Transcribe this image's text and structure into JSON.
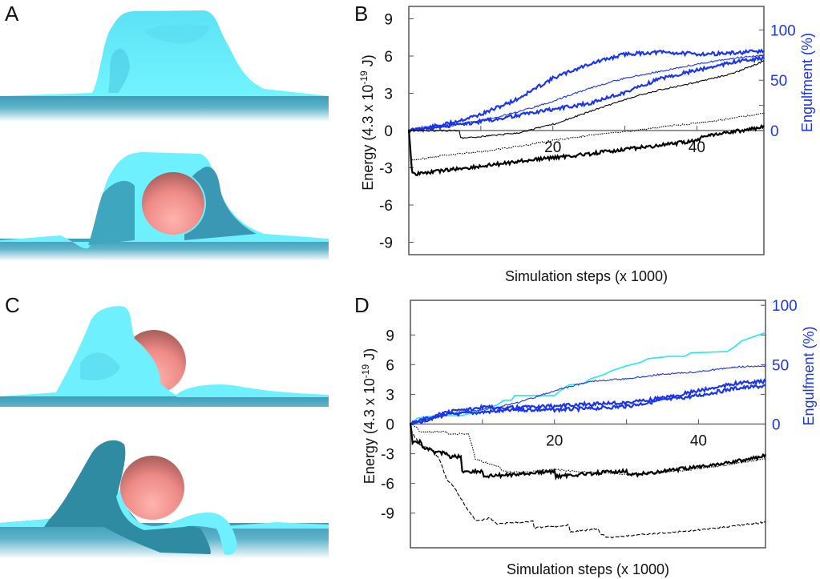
{
  "panels": {
    "A": {
      "label": "A",
      "description": "Cell spreading on flat substrate (top) and cup around spherical particle (bottom)"
    },
    "B": {
      "label": "B"
    },
    "C": {
      "label": "C",
      "description": "Asymmetric cup beside particle (top) and particle engulfed from side (bottom)"
    },
    "D": {
      "label": "D"
    }
  },
  "colors": {
    "membrane_light": "#6FF0FF",
    "membrane_dark": "#2F8BA2",
    "substrate": "#3E9CB8",
    "particle": "#F08F8C",
    "energy": "#000000",
    "engulfment": "#1A35F0",
    "engulfment_highlight": "#22E6F0",
    "axis": "#555555"
  },
  "chart_data": [
    {
      "id": "B",
      "type": "line",
      "xlabel": "Simulation steps (x 1000)",
      "ylabel": "Energy (4.3 x 10",
      "ylabel_sup": "-19",
      "ylabel_tail": " J)",
      "y2label": "Engulfment (%)",
      "xlim": [
        0,
        49.3
      ],
      "ylim": [
        -10,
        10
      ],
      "y2lim": [
        0,
        100
      ],
      "y2_zero_at_y": 0,
      "y2_100_at_y": 8.1,
      "xticks": [
        10,
        20,
        30,
        40
      ],
      "xticklabels": [
        "",
        "20",
        "",
        "40"
      ],
      "yticks": [
        9,
        6,
        3,
        0,
        -3,
        -6,
        -9
      ],
      "yticklabels": [
        "9",
        "6",
        "3",
        "0",
        "-3",
        "-6",
        "-9"
      ],
      "y2ticks": [
        0,
        25,
        50,
        75,
        100
      ],
      "y2ticklabels": [
        "0",
        "",
        "50",
        "",
        "100"
      ],
      "energy_series": [
        {
          "name": "energy-1",
          "style": "thick",
          "x": [
            0,
            0.4,
            0.5,
            1,
            5,
            10,
            15,
            20,
            25,
            30,
            35,
            40,
            41,
            45,
            49.3
          ],
          "y": [
            0,
            -2.9,
            -3.4,
            -3.5,
            -3.2,
            -2.9,
            -2.5,
            -2.2,
            -1.9,
            -1.5,
            -1.2,
            -0.8,
            -0.4,
            -0.1,
            0.3
          ]
        },
        {
          "name": "energy-2",
          "style": "dotted",
          "x": [
            0,
            0.3,
            0.5,
            5,
            10,
            15,
            20,
            25,
            30,
            35,
            40,
            45,
            49.3
          ],
          "y": [
            0,
            -2.2,
            -2.4,
            -2.0,
            -1.7,
            -1.3,
            -0.8,
            -0.4,
            -0.1,
            0.3,
            0.6,
            1.0,
            1.4
          ]
        },
        {
          "name": "energy-3",
          "style": "thin",
          "x": [
            0,
            7,
            7.2,
            10,
            15,
            20,
            25,
            30,
            35,
            40,
            45,
            49.3
          ],
          "y": [
            0,
            0,
            -0.6,
            -0.5,
            -0.2,
            0.5,
            1.5,
            2.5,
            3.3,
            3.9,
            4.6,
            5.6
          ]
        }
      ],
      "engulfment_series": [
        {
          "name": "engulf-1",
          "style": "thick",
          "x": [
            0,
            5,
            10,
            15,
            20,
            25,
            30,
            35,
            40,
            45,
            49.3
          ],
          "y_percent": [
            0,
            6,
            16,
            31,
            52,
            66,
            76,
            78,
            76,
            77,
            79
          ]
        },
        {
          "name": "engulf-2",
          "style": "thin",
          "x": [
            0,
            5,
            10,
            15,
            20,
            25,
            30,
            35,
            40,
            45,
            49.3
          ],
          "y_percent": [
            0,
            4,
            10,
            18,
            29,
            42,
            52,
            59,
            66,
            72,
            75
          ]
        },
        {
          "name": "engulf-3",
          "style": "thick",
          "x": [
            0,
            5,
            10,
            15,
            20,
            25,
            30,
            35,
            40,
            45,
            49.3
          ],
          "y_percent": [
            0,
            4,
            9,
            15,
            21,
            27,
            38,
            52,
            60,
            68,
            72
          ]
        }
      ]
    },
    {
      "id": "D",
      "type": "line",
      "xlabel": "Simulation steps (x 1000)",
      "ylabel": "Energy (4.3 x 10",
      "ylabel_sup": "-19",
      "ylabel_tail": " J)",
      "y2label": "Engulfment (%)",
      "xlim": [
        0,
        49.3
      ],
      "ylim": [
        -12.5,
        12.5
      ],
      "y2lim": [
        0,
        100
      ],
      "y2_zero_at_y": 0,
      "y2_100_at_y": 12,
      "xticks": [
        10,
        20,
        30,
        40
      ],
      "xticklabels": [
        "",
        "20",
        "",
        "40"
      ],
      "yticks": [
        9,
        6,
        3,
        0,
        -3,
        -6,
        -9
      ],
      "yticklabels": [
        "9",
        "6",
        "3",
        "0",
        "-3",
        "-6",
        "-9"
      ],
      "y2ticks": [
        0,
        25,
        50,
        75,
        100
      ],
      "y2ticklabels": [
        "0",
        "",
        "50",
        "",
        "100"
      ],
      "energy_series": [
        {
          "name": "energy-1",
          "style": "thick",
          "x": [
            0,
            0.3,
            1.5,
            1.7,
            3,
            3.2,
            5,
            5.2,
            7,
            7.2,
            10,
            10.2,
            20,
            20.2,
            30,
            30.2,
            35,
            40,
            45,
            49.3
          ],
          "y": [
            0,
            -1.8,
            -1.8,
            -2.5,
            -2.5,
            -2.9,
            -2.9,
            -3.3,
            -3.3,
            -4.8,
            -4.8,
            -5.3,
            -4.8,
            -5.3,
            -4.7,
            -5.2,
            -4.8,
            -4.3,
            -3.8,
            -3.2
          ]
        },
        {
          "name": "energy-2",
          "style": "dotted",
          "x": [
            0,
            1,
            1.2,
            5,
            5.2,
            8,
            8.5,
            9,
            10,
            12,
            13,
            15,
            20,
            25,
            30,
            35,
            40,
            45,
            49.3
          ],
          "y": [
            0,
            -0.4,
            -0.8,
            -0.8,
            -1.0,
            -1.0,
            -2.0,
            -3.5,
            -3.8,
            -4.2,
            -4.8,
            -4.9,
            -4.6,
            -4.9,
            -5.1,
            -4.9,
            -4.5,
            -4.0,
            -3.5
          ]
        },
        {
          "name": "energy-3",
          "style": "dashed",
          "x": [
            0,
            0.3,
            1.5,
            3,
            4,
            5,
            6,
            7,
            8,
            9,
            10,
            11,
            12,
            17,
            17.2,
            22,
            22.2,
            26,
            26.5,
            27,
            27.2,
            30,
            35,
            40,
            45,
            49.3
          ],
          "y": [
            0,
            -1.0,
            -2.2,
            -2.5,
            -3.5,
            -5.5,
            -6.3,
            -7.5,
            -8.7,
            -9.7,
            -9.7,
            -9.5,
            -10.1,
            -9.8,
            -10.5,
            -10.2,
            -10.9,
            -10.6,
            -11.2,
            -11.2,
            -11.5,
            -11.3,
            -11.0,
            -10.7,
            -10.3,
            -9.9
          ]
        }
      ],
      "engulfment_series": [
        {
          "name": "engulf-highlight",
          "style": "cyan",
          "x": [
            0,
            1,
            2,
            5,
            7,
            9,
            10,
            11,
            12,
            13,
            14,
            14.5,
            20,
            21,
            22,
            24,
            25,
            27,
            28,
            30,
            32,
            33,
            36,
            38,
            39,
            44,
            45,
            46,
            49.3
          ],
          "y_percent": [
            0,
            5,
            6,
            7,
            7,
            10,
            10,
            14,
            16,
            20,
            20,
            24,
            24,
            29,
            33,
            34,
            38,
            42,
            45,
            49,
            52,
            55,
            57,
            57,
            60,
            61,
            65,
            70,
            77
          ]
        },
        {
          "name": "engulf-thin",
          "style": "thin",
          "x": [
            0,
            5,
            10,
            15,
            20,
            25,
            30,
            35,
            40,
            45,
            49.3
          ],
          "y_percent": [
            0,
            8,
            12,
            18,
            28,
            36,
            38,
            42,
            44,
            48,
            49
          ]
        },
        {
          "name": "engulf-thick-1",
          "style": "thick",
          "x": [
            0,
            5,
            10,
            15,
            20,
            25,
            30,
            35,
            40,
            45,
            49.3
          ],
          "y_percent": [
            0,
            10,
            14,
            14,
            15,
            17,
            18,
            22,
            28,
            34,
            36
          ]
        },
        {
          "name": "engulf-thick-2",
          "style": "thick",
          "x": [
            0,
            5,
            10,
            15,
            20,
            25,
            30,
            35,
            40,
            45,
            49.3
          ],
          "y_percent": [
            0,
            8,
            10,
            12,
            12,
            13,
            15,
            20,
            24,
            30,
            32
          ]
        }
      ]
    }
  ]
}
